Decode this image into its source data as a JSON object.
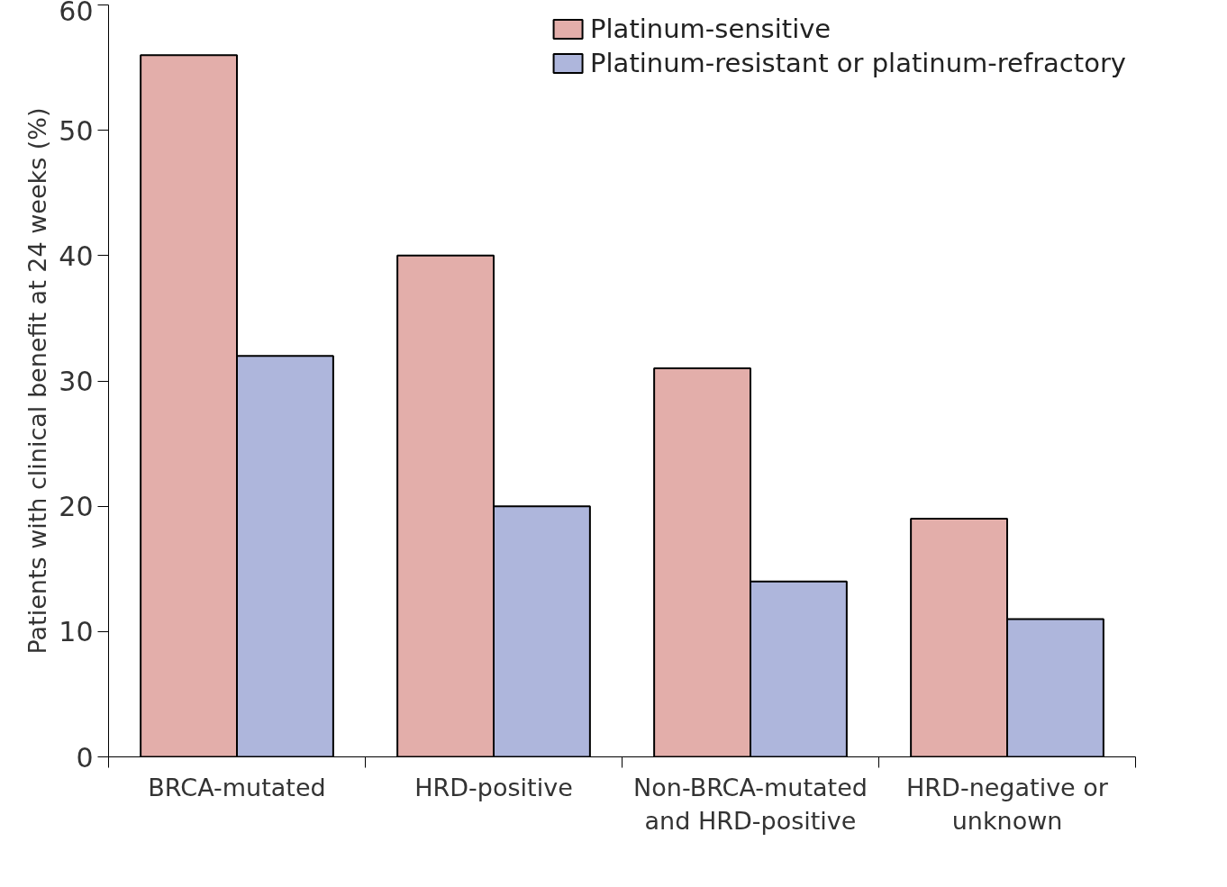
{
  "chart_data": {
    "type": "bar",
    "ylabel": "Patients with clinical benefit at 24 weeks (%)",
    "categories": [
      "BRCA-mutated",
      "HRD-positive",
      "Non-BRCA-mutated\nand HRD-positive",
      "HRD-negative or\nunknown"
    ],
    "series": [
      {
        "name": "Platinum-sensitive",
        "color": "#e3aeaa",
        "values": [
          56,
          40,
          31,
          19
        ]
      },
      {
        "name": "Platinum-resistant or platinum-refractory",
        "color": "#aeb6dc",
        "values": [
          32,
          20,
          14,
          11
        ]
      }
    ],
    "ylim": [
      0,
      60
    ],
    "yticks": [
      0,
      10,
      20,
      30,
      40,
      50,
      60
    ],
    "grid": false,
    "legend": "top right"
  }
}
